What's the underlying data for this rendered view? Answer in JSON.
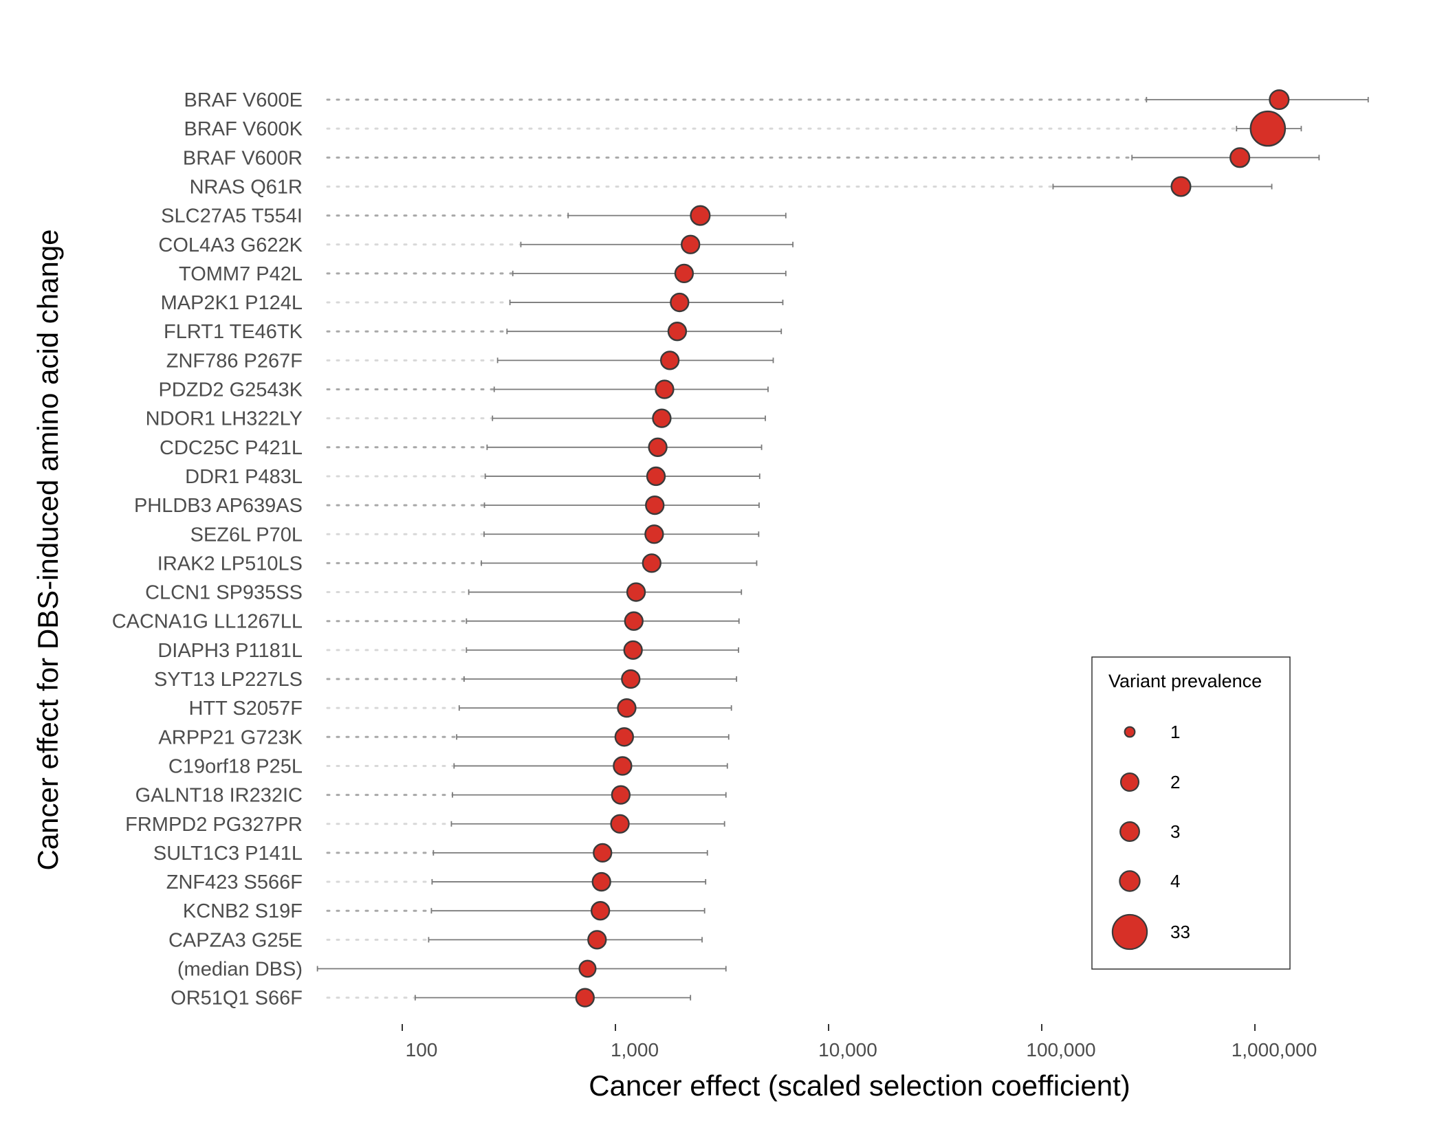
{
  "chart_data": {
    "type": "scatter",
    "title": "",
    "xlabel": "Cancer effect (scaled selection coefficient)",
    "ylabel": "Cancer effect for DBS-induced amino acid change",
    "x_scale": "log10",
    "xlim": [
      40,
      4000000
    ],
    "x_ticks": [
      100,
      1000,
      10000,
      100000,
      1000000
    ],
    "x_tick_labels": [
      "100",
      "1,000",
      "10,000",
      "100,000",
      "1,000,000"
    ],
    "grid": false,
    "legend": {
      "title": "Variant prevalence",
      "placement": "bottom-right",
      "sizes": [
        1,
        2,
        3,
        4,
        33
      ],
      "labels": [
        "1",
        "2",
        "3",
        "4",
        "33"
      ]
    },
    "colors": {
      "point_fill": "#d73027",
      "point_stroke": "#3a3a3a",
      "errorbar": "#7a7a7a",
      "dotted_guide": "#cfcfcf"
    },
    "points": [
      {
        "label": "BRAF V600E",
        "x": 1300000,
        "ci": [
          310000,
          3400000
        ],
        "prevalence": 3
      },
      {
        "label": "BRAF V600K",
        "x": 1150000,
        "ci": [
          820000,
          1650000
        ],
        "prevalence": 33
      },
      {
        "label": "BRAF V600R",
        "x": 850000,
        "ci": [
          265000,
          2000000
        ],
        "prevalence": 3
      },
      {
        "label": "NRAS Q61R",
        "x": 450000,
        "ci": [
          113000,
          1200000
        ],
        "prevalence": 3
      },
      {
        "label": "SLC27A5 T554I",
        "x": 2500,
        "ci": [
          600,
          6300
        ],
        "prevalence": 3
      },
      {
        "label": "COL4A3 G622K",
        "x": 2250,
        "ci": [
          360,
          6800
        ],
        "prevalence": 2
      },
      {
        "label": "TOMM7 P42L",
        "x": 2100,
        "ci": [
          330,
          6300
        ],
        "prevalence": 2
      },
      {
        "label": "MAP2K1 P124L",
        "x": 2000,
        "ci": [
          320,
          6100
        ],
        "prevalence": 2
      },
      {
        "label": "FLRT1 TE46TK",
        "x": 1950,
        "ci": [
          310,
          6000
        ],
        "prevalence": 2
      },
      {
        "label": "ZNF786 P267F",
        "x": 1800,
        "ci": [
          280,
          5500
        ],
        "prevalence": 2
      },
      {
        "label": "PDZD2 G2543K",
        "x": 1700,
        "ci": [
          270,
          5200
        ],
        "prevalence": 2
      },
      {
        "label": "NDOR1 LH322LY",
        "x": 1650,
        "ci": [
          265,
          5050
        ],
        "prevalence": 2
      },
      {
        "label": "CDC25C P421L",
        "x": 1580,
        "ci": [
          250,
          4850
        ],
        "prevalence": 2
      },
      {
        "label": "DDR1 P483L",
        "x": 1550,
        "ci": [
          245,
          4750
        ],
        "prevalence": 2
      },
      {
        "label": "PHLDB3 AP639AS",
        "x": 1530,
        "ci": [
          243,
          4720
        ],
        "prevalence": 2
      },
      {
        "label": "SEZ6L P70L",
        "x": 1520,
        "ci": [
          242,
          4700
        ],
        "prevalence": 2
      },
      {
        "label": "IRAK2 LP510LS",
        "x": 1480,
        "ci": [
          235,
          4600
        ],
        "prevalence": 2
      },
      {
        "label": "CLCN1 SP935SS",
        "x": 1250,
        "ci": [
          205,
          3900
        ],
        "prevalence": 2
      },
      {
        "label": "CACNA1G LL1267LL",
        "x": 1220,
        "ci": [
          200,
          3800
        ],
        "prevalence": 2
      },
      {
        "label": "DIAPH3 P1181L",
        "x": 1210,
        "ci": [
          200,
          3780
        ],
        "prevalence": 2
      },
      {
        "label": "SYT13 LP227LS",
        "x": 1180,
        "ci": [
          195,
          3700
        ],
        "prevalence": 2
      },
      {
        "label": "HTT S2057F",
        "x": 1130,
        "ci": [
          185,
          3500
        ],
        "prevalence": 2
      },
      {
        "label": "ARPP21 G723K",
        "x": 1100,
        "ci": [
          180,
          3400
        ],
        "prevalence": 2
      },
      {
        "label": "C19orf18 P25L",
        "x": 1080,
        "ci": [
          175,
          3350
        ],
        "prevalence": 2
      },
      {
        "label": "GALNT18 IR232IC",
        "x": 1060,
        "ci": [
          172,
          3300
        ],
        "prevalence": 2
      },
      {
        "label": "FRMPD2 PG327PR",
        "x": 1050,
        "ci": [
          170,
          3250
        ],
        "prevalence": 2
      },
      {
        "label": "SULT1C3 P141L",
        "x": 870,
        "ci": [
          140,
          2700
        ],
        "prevalence": 2
      },
      {
        "label": "ZNF423 S566F",
        "x": 860,
        "ci": [
          138,
          2650
        ],
        "prevalence": 2
      },
      {
        "label": "KCNB2 S19F",
        "x": 850,
        "ci": [
          137,
          2620
        ],
        "prevalence": 2
      },
      {
        "label": "CAPZA3 G25E",
        "x": 820,
        "ci": [
          133,
          2550
        ],
        "prevalence": 2
      },
      {
        "label": "(median DBS)",
        "x": 740,
        "ci": [
          40,
          3300
        ],
        "prevalence": 1
      },
      {
        "label": "OR51Q1 S66F",
        "x": 720,
        "ci": [
          115,
          2250
        ],
        "prevalence": 2
      }
    ]
  }
}
